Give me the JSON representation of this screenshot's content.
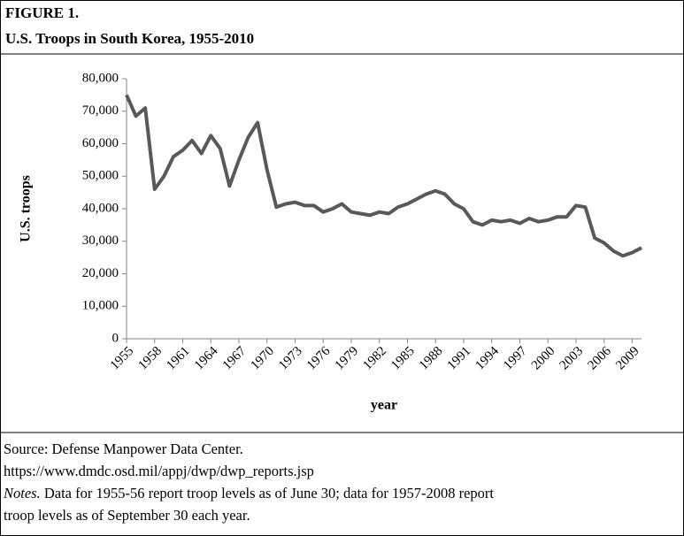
{
  "chart_data": {
    "type": "line",
    "figure_label": "FIGURE 1.",
    "title": "U.S. Troops in South Korea, 1955-2010",
    "ylabel": "U.S. troops",
    "xlabel": "year",
    "x": [
      1955,
      1956,
      1957,
      1958,
      1959,
      1960,
      1961,
      1962,
      1963,
      1964,
      1965,
      1966,
      1967,
      1968,
      1969,
      1970,
      1971,
      1972,
      1973,
      1974,
      1975,
      1976,
      1977,
      1978,
      1979,
      1980,
      1981,
      1982,
      1983,
      1984,
      1985,
      1986,
      1987,
      1988,
      1989,
      1990,
      1991,
      1992,
      1993,
      1994,
      1995,
      1996,
      1997,
      1998,
      1999,
      2000,
      2001,
      2002,
      2003,
      2004,
      2005,
      2006,
      2007,
      2008,
      2009,
      2010
    ],
    "series": [
      {
        "name": "U.S. troops",
        "color": "#595959",
        "values": [
          75000,
          68500,
          71000,
          46000,
          50000,
          56000,
          58000,
          61000,
          57000,
          62500,
          58500,
          47000,
          55000,
          62000,
          66500,
          52000,
          40500,
          41500,
          42000,
          41000,
          41000,
          39000,
          40000,
          41500,
          39000,
          38500,
          38000,
          39000,
          38500,
          40500,
          41500,
          43000,
          44500,
          45500,
          44500,
          41500,
          40000,
          36000,
          35000,
          36500,
          36000,
          36500,
          35500,
          37000,
          36000,
          36500,
          37500,
          37500,
          41000,
          40500,
          31000,
          29500,
          27000,
          25500,
          26500,
          28000
        ]
      }
    ],
    "xlim": [
      1955,
      2010
    ],
    "xticks": [
      1955,
      1958,
      1961,
      1964,
      1967,
      1970,
      1973,
      1976,
      1979,
      1982,
      1985,
      1988,
      1991,
      1994,
      1997,
      2000,
      2003,
      2006,
      2009
    ],
    "ylim": [
      0,
      80000
    ],
    "yticks": [
      0,
      {
        "value": 10000,
        "label": "10,000"
      },
      {
        "value": 20000,
        "label": "20,000"
      },
      {
        "value": 30000,
        "label": "30,000"
      },
      {
        "value": 40000,
        "label": "40,000"
      },
      {
        "value": 50000,
        "label": "50,000"
      },
      {
        "value": 60000,
        "label": "60,000"
      },
      {
        "value": 70000,
        "label": "70,000"
      },
      {
        "value": 80000,
        "label": "80,000"
      }
    ],
    "grid": false
  },
  "footer": {
    "source": "Source: Defense Manpower Data Center.",
    "url": "https://www.dmdc.osd.mil/appj/dwp/dwp_reports.jsp",
    "notes_label": "Notes.",
    "notes_line1": " Data for 1955-56 report troop levels as of June 30; data for 1957-2008 report",
    "notes_line2": "troop levels as of September 30 each year."
  }
}
